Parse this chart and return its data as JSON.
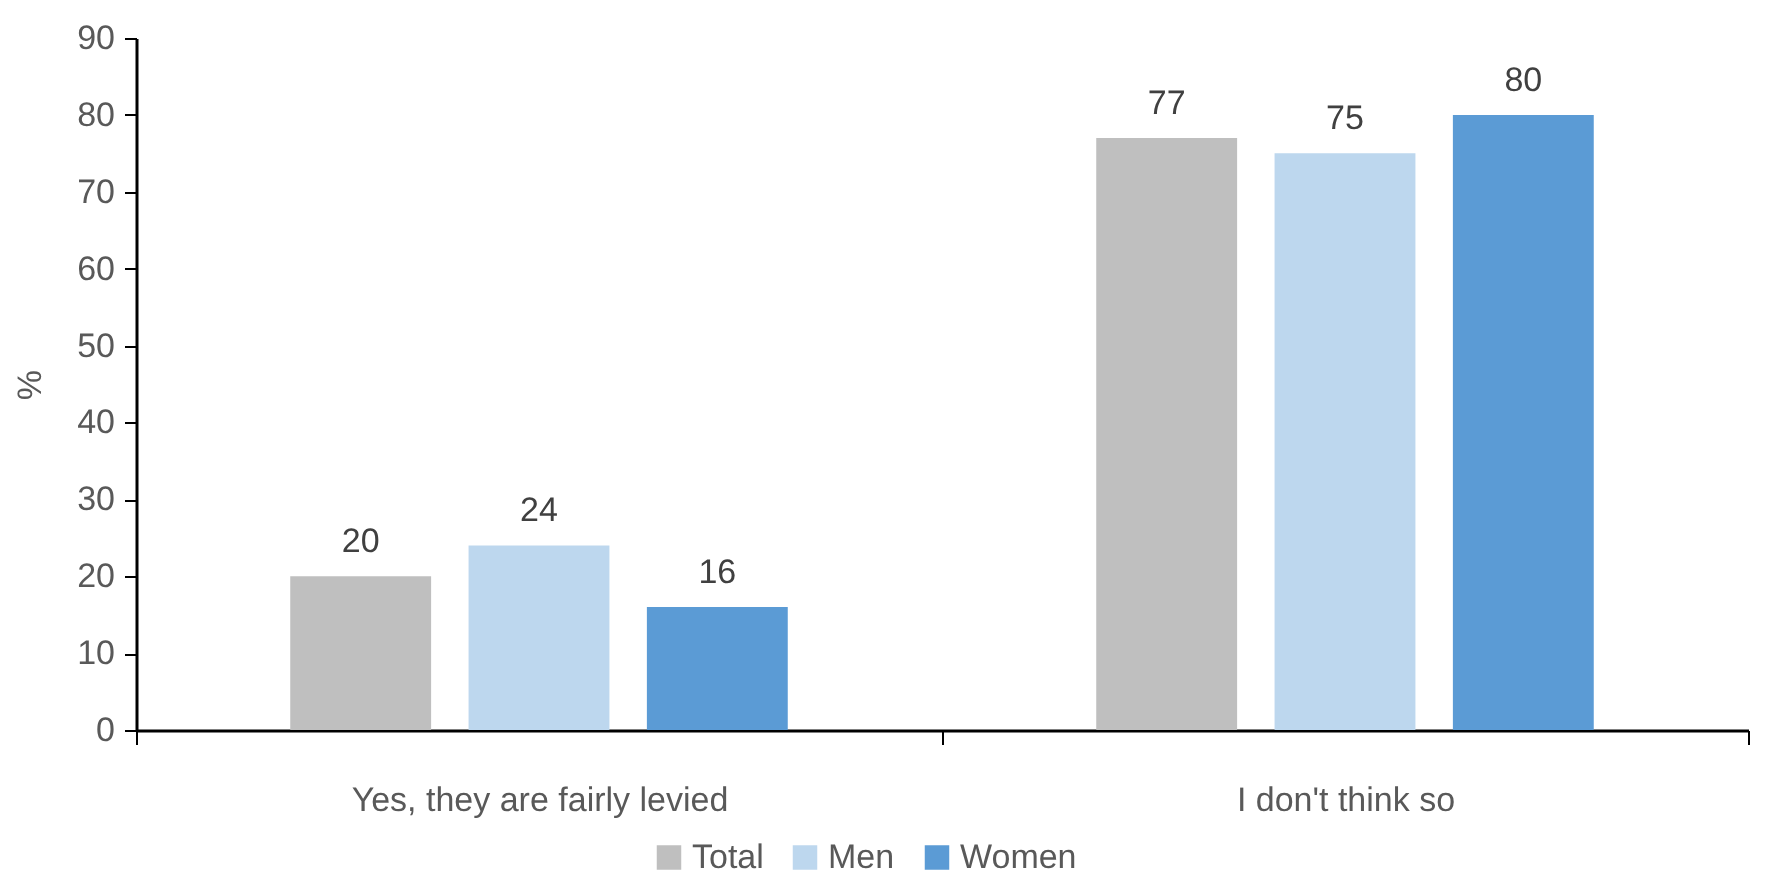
{
  "chart_data": {
    "type": "bar",
    "ylabel": "%",
    "categories": [
      "Yes, they are fairly levied",
      "I don't think so"
    ],
    "series": [
      {
        "name": "Total",
        "color": "#bfbfbf",
        "values": [
          20,
          77
        ]
      },
      {
        "name": "Men",
        "color": "#bdd7ee",
        "values": [
          24,
          75
        ]
      },
      {
        "name": "Women",
        "color": "#5b9bd5",
        "values": [
          16,
          80
        ]
      }
    ],
    "ylim": [
      0,
      90
    ],
    "yticks": [
      0,
      10,
      20,
      30,
      40,
      50,
      60,
      70,
      80,
      90
    ],
    "data_labels": true,
    "legend": "bottom",
    "grid": false
  }
}
